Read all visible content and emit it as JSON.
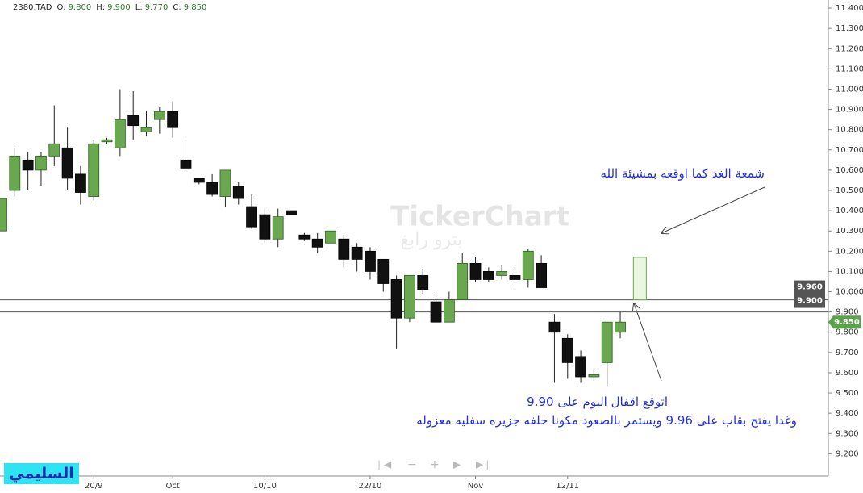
{
  "header": {
    "symbol": "2380.TAD",
    "items": [
      {
        "label": "O:",
        "value": "9.800"
      },
      {
        "label": "H:",
        "value": "9.900"
      },
      {
        "label": "L:",
        "value": "9.770"
      },
      {
        "label": "C:",
        "value": "9.850"
      }
    ]
  },
  "watermark": {
    "brand": "TickerChart",
    "name": "بترو رابغ"
  },
  "signature": "السليمي",
  "chart_data": {
    "type": "candlestick",
    "categories": [
      null,
      null,
      null,
      null,
      null,
      null,
      null,
      "20/9",
      null,
      null,
      null,
      null,
      null,
      "Oct",
      null,
      null,
      null,
      null,
      null,
      null,
      "10/10",
      null,
      null,
      null,
      null,
      null,
      null,
      null,
      "22/10",
      null,
      null,
      null,
      null,
      null,
      null,
      null,
      "Nov",
      null,
      null,
      null,
      null,
      null,
      null,
      "12/11",
      null,
      null,
      null,
      null
    ],
    "open": [
      10.3,
      10.5,
      10.65,
      10.6,
      10.67,
      10.71,
      10.58,
      10.47,
      10.74,
      10.71,
      10.87,
      10.79,
      10.85,
      10.89,
      10.65,
      10.56,
      10.54,
      10.47,
      10.52,
      10.42,
      10.38,
      10.26,
      10.4,
      10.28,
      10.26,
      10.24,
      10.26,
      10.22,
      10.2,
      10.16,
      10.06,
      9.87,
      10.08,
      9.95,
      9.85,
      9.96,
      10.14,
      10.1,
      10.08,
      10.08,
      10.06,
      10.14,
      9.85,
      9.77,
      9.68,
      9.58,
      9.65,
      9.8
    ],
    "high": [
      10.46,
      10.71,
      10.69,
      10.69,
      10.92,
      10.81,
      10.62,
      10.75,
      10.76,
      11.0,
      10.99,
      10.89,
      10.91,
      10.94,
      10.76,
      10.56,
      10.58,
      10.6,
      10.54,
      10.48,
      10.41,
      10.41,
      10.4,
      10.29,
      10.29,
      10.3,
      10.28,
      10.24,
      10.22,
      10.16,
      10.08,
      10.08,
      10.11,
      9.99,
      10.0,
      10.19,
      10.17,
      10.12,
      10.13,
      10.13,
      10.21,
      10.18,
      9.89,
      9.79,
      9.71,
      9.62,
      9.85,
      9.9
    ],
    "low": [
      10.3,
      10.47,
      10.5,
      10.52,
      10.62,
      10.5,
      10.43,
      10.45,
      10.73,
      10.67,
      10.75,
      10.77,
      10.78,
      10.76,
      10.6,
      10.53,
      10.47,
      10.42,
      10.43,
      10.31,
      10.24,
      10.22,
      10.38,
      10.25,
      10.19,
      10.24,
      10.12,
      10.1,
      10.06,
      10.0,
      9.72,
      9.85,
      9.99,
      9.85,
      9.85,
      9.96,
      10.05,
      10.05,
      10.06,
      10.02,
      10.02,
      10.02,
      9.55,
      9.57,
      9.55,
      9.56,
      9.53,
      9.77
    ],
    "close": [
      10.46,
      10.67,
      10.6,
      10.67,
      10.73,
      10.56,
      10.49,
      10.73,
      10.75,
      10.85,
      10.82,
      10.81,
      10.89,
      10.81,
      10.61,
      10.54,
      10.48,
      10.6,
      10.46,
      10.32,
      10.26,
      10.37,
      10.38,
      10.26,
      10.22,
      10.3,
      10.16,
      10.16,
      10.1,
      10.04,
      9.87,
      10.08,
      10.01,
      9.85,
      9.96,
      10.14,
      10.06,
      10.06,
      10.1,
      10.06,
      10.2,
      10.02,
      9.8,
      9.65,
      9.58,
      9.59,
      9.85,
      9.85
    ],
    "up_color": "#6aa84f",
    "down_color": "#111111",
    "forecast": {
      "open": 9.96,
      "close": 10.17,
      "color": "#eaf6e2"
    },
    "hlines": [
      {
        "value": 9.96,
        "label": "9.960"
      },
      {
        "value": 9.9,
        "label": "9.900"
      }
    ],
    "last_price": {
      "value": 9.85,
      "label": "9.850",
      "color": "#5aa34a"
    },
    "ylim": [
      9.09,
      11.44
    ],
    "yticks": [
      {
        "value": 9.2,
        "label": "9.200"
      },
      {
        "value": 9.3,
        "label": "9.300"
      },
      {
        "value": 9.4,
        "label": "9.400"
      },
      {
        "value": 9.5,
        "label": "9.500"
      },
      {
        "value": 9.6,
        "label": "9.600"
      },
      {
        "value": 9.7,
        "label": "9.700"
      },
      {
        "value": 9.8,
        "label": "9.800"
      },
      {
        "value": 9.9,
        "label": "9.900"
      },
      {
        "value": 10,
        "label": "10.000"
      },
      {
        "value": 10.1,
        "label": "10.100"
      },
      {
        "value": 10.2,
        "label": "10.200"
      },
      {
        "value": 10.3,
        "label": "10.300"
      },
      {
        "value": 10.4,
        "label": "10.400"
      },
      {
        "value": 10.5,
        "label": "10.500"
      },
      {
        "value": 10.6,
        "label": "10.600"
      },
      {
        "value": 10.7,
        "label": "10.700"
      },
      {
        "value": 10.8,
        "label": "10.800"
      },
      {
        "value": 10.9,
        "label": "10.900"
      },
      {
        "value": 11,
        "label": "11.000"
      },
      {
        "value": 11.1,
        "label": "11.100"
      },
      {
        "value": 11.2,
        "label": "11.200"
      },
      {
        "value": 11.3,
        "label": "11.300"
      },
      {
        "value": 11.4,
        "label": "11.400"
      }
    ],
    "grid": false,
    "annotations": [
      "شمعة الغد كما اوقعه بمشيئة الله",
      "اتوقع اقفال اليوم على 9.90",
      "وغدا يفتح بقاب على 9.96 ويستمر بالصعود مكونا خلفه جزيره سفليه معزوله"
    ]
  }
}
